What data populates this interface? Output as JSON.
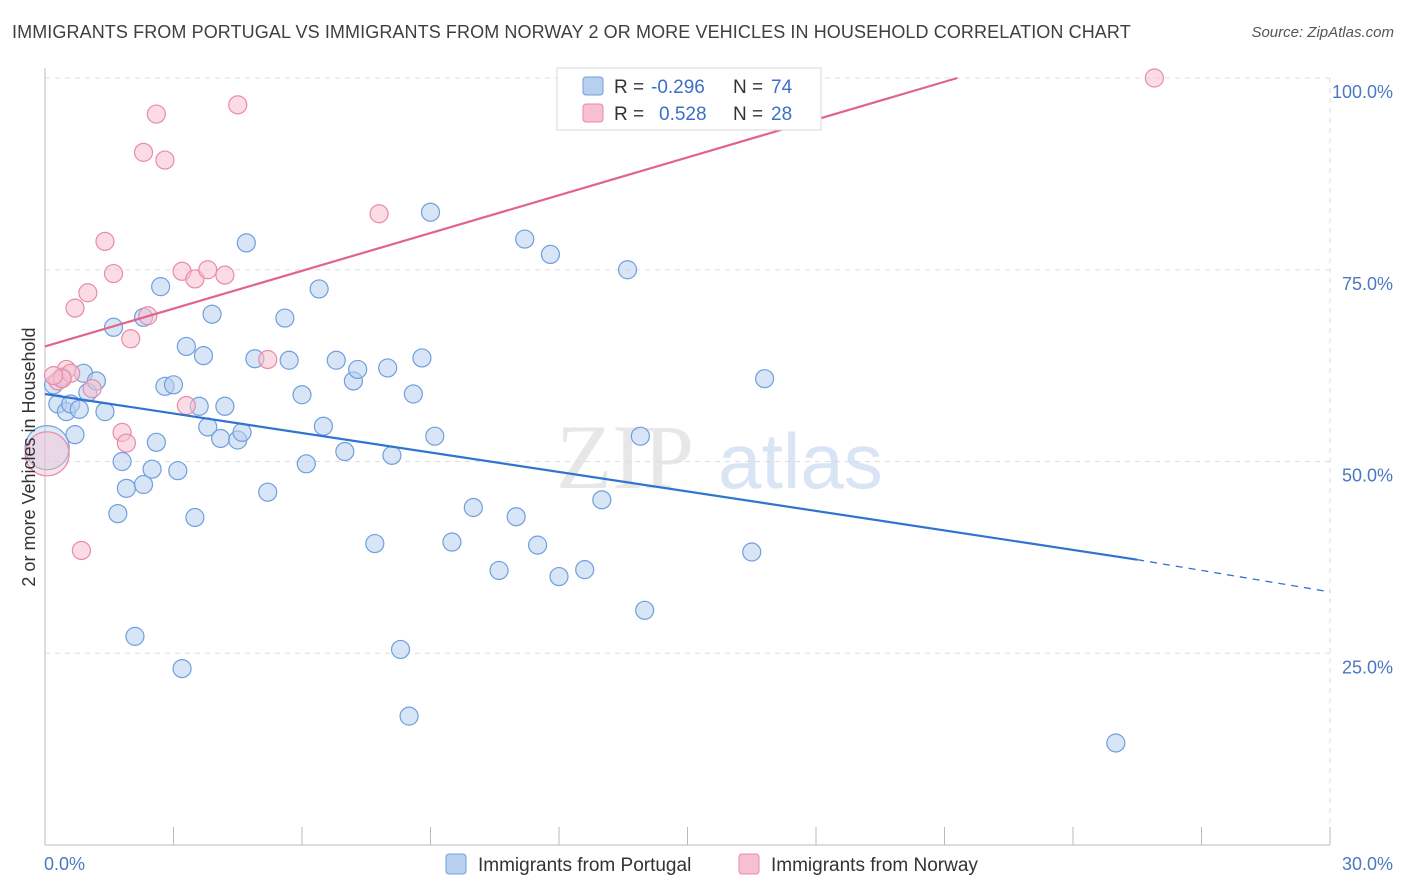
{
  "title": "IMMIGRANTS FROM PORTUGAL VS IMMIGRANTS FROM NORWAY 2 OR MORE VEHICLES IN HOUSEHOLD CORRELATION CHART",
  "source": "Source: ZipAtlas.com",
  "watermark": {
    "zip": "ZIP",
    "atlas": "atlas"
  },
  "colors": {
    "portugal_fill": "#b8d0f0",
    "portugal_stroke": "#6f9fdc",
    "portugal_line": "#2f74d0",
    "norway_fill": "#f7c0d0",
    "norway_stroke": "#e98aa8",
    "norway_line": "#e0648e",
    "grid": "#dddddd",
    "tick_label": "#4a78c2"
  },
  "legend": {
    "r_label": "R =",
    "n_label": "N =",
    "rows": [
      {
        "r": "-0.296",
        "n": "74"
      },
      {
        "r": "0.528",
        "n": "28"
      }
    ]
  },
  "chart_data": {
    "type": "scatter",
    "xlabel": "",
    "ylabel": "2 or more Vehicles in Household",
    "xlim": [
      0,
      30
    ],
    "ylim": [
      0,
      100
    ],
    "x_ticks": [
      "0.0%",
      "30.0%"
    ],
    "y_ticks": [
      {
        "value": 25,
        "label": "25.0%"
      },
      {
        "value": 50,
        "label": "50.0%"
      },
      {
        "value": 75,
        "label": "75.0%"
      },
      {
        "value": 100,
        "label": "100.0%"
      }
    ],
    "grid": true,
    "legend_position": "bottom",
    "series": [
      {
        "name": "Immigrants from Portugal",
        "r": -0.296,
        "n": 74,
        "trend": {
          "x0": 0,
          "y0": 58.8,
          "x1": 25.5,
          "y1": 37.2,
          "dash_to_x": 30,
          "dash_to_y": 33.0
        },
        "points": [
          [
            0.2,
            60.0
          ],
          [
            0.3,
            57.5
          ],
          [
            0.4,
            61.0
          ],
          [
            0.5,
            56.5
          ],
          [
            0.6,
            57.5
          ],
          [
            0.7,
            53.5
          ],
          [
            0.8,
            56.8
          ],
          [
            0.9,
            61.5
          ],
          [
            1.0,
            59.0
          ],
          [
            1.2,
            60.5
          ],
          [
            1.4,
            56.5
          ],
          [
            1.6,
            67.5
          ],
          [
            1.7,
            43.2
          ],
          [
            1.8,
            50.0
          ],
          [
            1.9,
            46.5
          ],
          [
            2.1,
            27.2
          ],
          [
            2.3,
            47.0
          ],
          [
            2.3,
            68.8
          ],
          [
            2.5,
            49.0
          ],
          [
            2.6,
            52.5
          ],
          [
            2.7,
            72.8
          ],
          [
            2.8,
            59.8
          ],
          [
            3.0,
            60.0
          ],
          [
            3.1,
            48.8
          ],
          [
            3.2,
            23.0
          ],
          [
            3.3,
            65.0
          ],
          [
            3.5,
            42.7
          ],
          [
            3.6,
            57.2
          ],
          [
            3.7,
            63.8
          ],
          [
            3.8,
            54.5
          ],
          [
            3.9,
            69.2
          ],
          [
            4.1,
            53.0
          ],
          [
            4.2,
            57.2
          ],
          [
            4.5,
            52.8
          ],
          [
            4.6,
            53.8
          ],
          [
            4.7,
            78.5
          ],
          [
            4.9,
            63.4
          ],
          [
            5.2,
            46.0
          ],
          [
            5.6,
            68.7
          ],
          [
            5.7,
            63.2
          ],
          [
            6.0,
            58.7
          ],
          [
            6.1,
            49.7
          ],
          [
            6.4,
            72.5
          ],
          [
            6.5,
            54.6
          ],
          [
            6.8,
            63.2
          ],
          [
            7.0,
            51.3
          ],
          [
            7.2,
            60.5
          ],
          [
            7.3,
            62.0
          ],
          [
            7.7,
            39.3
          ],
          [
            8.0,
            62.2
          ],
          [
            8.1,
            50.8
          ],
          [
            8.3,
            25.5
          ],
          [
            8.5,
            16.8
          ],
          [
            8.6,
            58.8
          ],
          [
            8.8,
            63.5
          ],
          [
            9.0,
            82.5
          ],
          [
            9.1,
            53.3
          ],
          [
            9.5,
            39.5
          ],
          [
            10.0,
            44.0
          ],
          [
            10.6,
            35.8
          ],
          [
            11.0,
            42.8
          ],
          [
            11.2,
            79.0
          ],
          [
            11.5,
            39.1
          ],
          [
            11.8,
            77.0
          ],
          [
            12.0,
            35.0
          ],
          [
            12.6,
            35.9
          ],
          [
            13.0,
            45.0
          ],
          [
            13.6,
            75.0
          ],
          [
            13.9,
            53.3
          ],
          [
            14.0,
            30.6
          ],
          [
            16.5,
            38.2
          ],
          [
            16.8,
            60.8
          ],
          [
            25.0,
            13.3
          ],
          [
            0.05,
            51.8
          ]
        ]
      },
      {
        "name": "Immigrants from Norway",
        "r": 0.528,
        "n": 28,
        "trend": {
          "x0": 0,
          "y0": 65.0,
          "x1": 21.3,
          "y1": 100
        },
        "points": [
          [
            0.05,
            51.0
          ],
          [
            0.3,
            60.5
          ],
          [
            0.5,
            62.0
          ],
          [
            0.6,
            61.5
          ],
          [
            0.7,
            70.0
          ],
          [
            0.85,
            38.4
          ],
          [
            1.0,
            72.0
          ],
          [
            1.1,
            59.5
          ],
          [
            1.4,
            78.7
          ],
          [
            1.6,
            74.5
          ],
          [
            1.8,
            53.8
          ],
          [
            1.9,
            52.4
          ],
          [
            2.0,
            66.0
          ],
          [
            2.3,
            90.3
          ],
          [
            2.4,
            69.0
          ],
          [
            2.6,
            95.3
          ],
          [
            2.8,
            89.3
          ],
          [
            3.2,
            74.8
          ],
          [
            3.3,
            57.3
          ],
          [
            3.5,
            73.8
          ],
          [
            3.8,
            75.0
          ],
          [
            4.2,
            74.3
          ],
          [
            4.5,
            96.5
          ],
          [
            5.2,
            63.3
          ],
          [
            7.8,
            82.3
          ],
          [
            25.9,
            100.0
          ],
          [
            0.4,
            60.8
          ],
          [
            0.2,
            61.2
          ]
        ]
      }
    ]
  }
}
